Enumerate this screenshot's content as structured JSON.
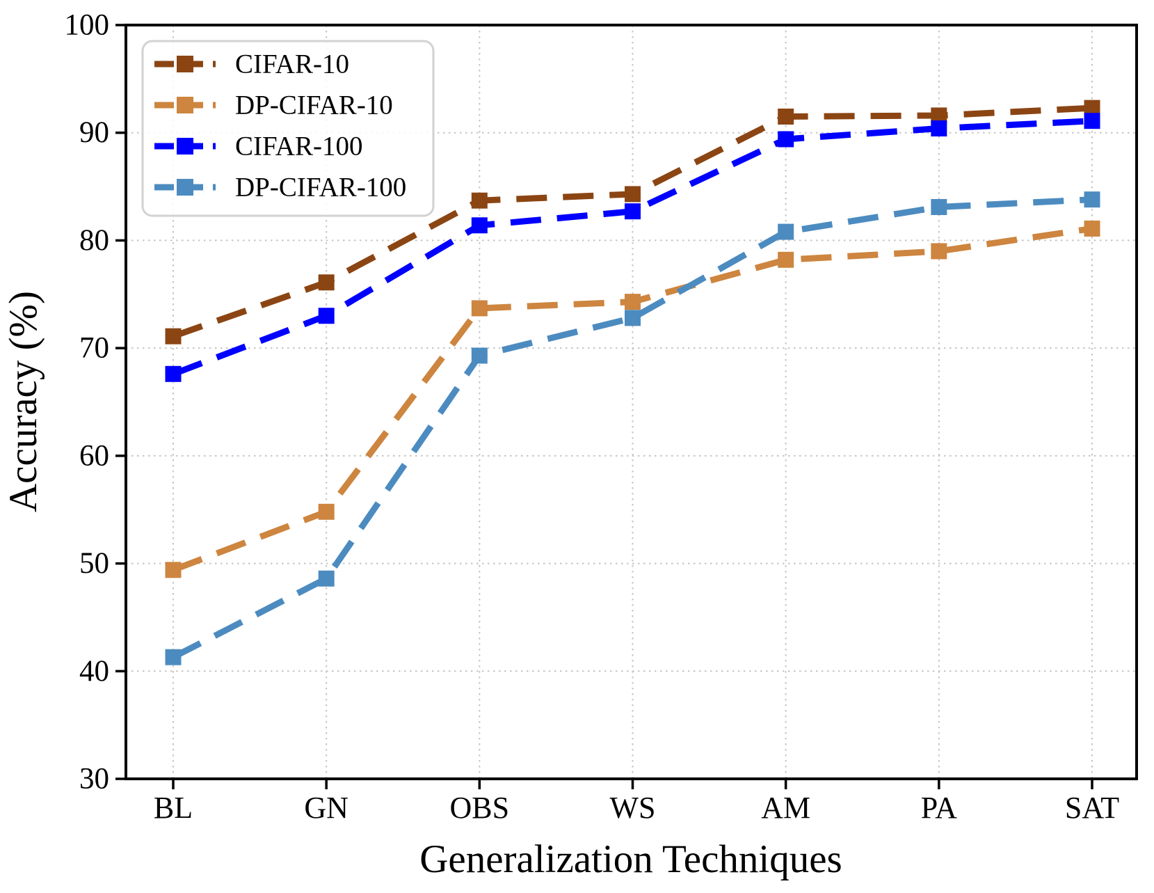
{
  "chart_data": {
    "type": "line",
    "title": "",
    "xlabel": "Generalization Techniques",
    "ylabel": "Accuracy (%)",
    "categories": [
      "BL",
      "GN",
      "OBS",
      "WS",
      "AM",
      "PA",
      "SAT"
    ],
    "ylim": [
      30,
      100
    ],
    "yticks": [
      30,
      40,
      50,
      60,
      70,
      80,
      90,
      100
    ],
    "grid": true,
    "grid_style": "dotted",
    "line_style": "dashed",
    "marker": "square",
    "legend_position": "upper-left",
    "legend_entries": [
      "CIFAR-10",
      "DP-CIFAR-10",
      "CIFAR-100",
      "DP-CIFAR-100"
    ],
    "series": [
      {
        "name": "CIFAR-10",
        "color": "#8B4513",
        "values": [
          71.1,
          76.1,
          83.7,
          84.3,
          91.5,
          91.6,
          92.3
        ]
      },
      {
        "name": "DP-CIFAR-10",
        "color": "#CD853F",
        "values": [
          49.4,
          54.8,
          73.7,
          74.3,
          78.2,
          79.0,
          81.1
        ]
      },
      {
        "name": "CIFAR-100",
        "color": "#0000FF",
        "values": [
          67.6,
          73.0,
          81.4,
          82.7,
          89.4,
          90.4,
          91.1
        ]
      },
      {
        "name": "DP-CIFAR-100",
        "color": "#4C8BC0",
        "values": [
          41.3,
          48.6,
          69.3,
          72.8,
          80.8,
          83.1,
          83.8
        ]
      }
    ],
    "colors": {
      "grid": "#c4c4c4",
      "spine": "#000000",
      "legend_border": "#d2d2d2"
    }
  }
}
